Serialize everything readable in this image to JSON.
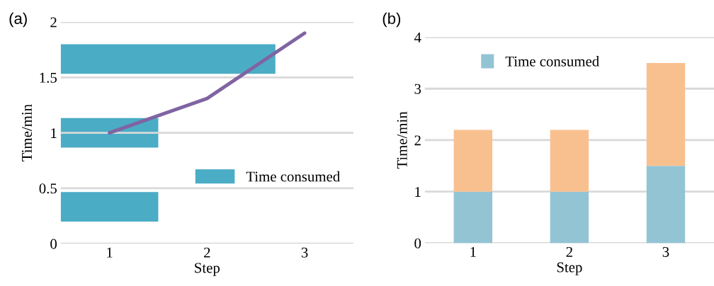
{
  "chart_data": [
    {
      "type": "bar",
      "orientation": "horizontal",
      "tick_labels": "x",
      "xlabel": "Step",
      "annotations": [
        "(a)"
      ],
      "categories": [
        null,
        null,
        null
      ],
      "xlim": [
        0.5,
        3.5
      ],
      "xticks": [
        1,
        2,
        3
      ],
      "legend": "right",
      "series": [
        {
          "name": "Time consumed",
          "color": "#4bacc6",
          "values": [
            2.2,
            1,
            1
          ],
          "base": [
            0.5,
            0.5,
            0.5
          ]
        }
      ]
    },
    {
      "type": "line",
      "tick_labels": "y",
      "ylabel": "Time/min",
      "xlim": [
        0.5,
        3.5
      ],
      "xticks": [
        1,
        2,
        3
      ],
      "ylim": [
        0,
        2
      ],
      "yticks": [
        0,
        0.5,
        1,
        1.5,
        2
      ],
      "grid": "y",
      "series": [
        {
          "color": "#8064a2",
          "x": [
            1,
            2,
            3
          ],
          "values": [
            1,
            1.31,
            1.9
          ]
        }
      ]
    },
    {
      "type": "bar",
      "stacked": true,
      "xlabel": "Step",
      "ylabel": "Time/min",
      "annotations": [
        "(b)"
      ],
      "categories": [
        "1",
        "2",
        "3"
      ],
      "ylim": [
        0,
        4
      ],
      "yticks": [
        0,
        1,
        2,
        3,
        4
      ],
      "grid": "y",
      "legend": "top",
      "series": [
        {
          "name": "Time consumed",
          "color": "#93c4d4",
          "values": [
            1,
            1,
            1.5
          ]
        },
        {
          "color": "#f9c08f",
          "values": [
            1.2,
            1.2,
            2.0
          ]
        }
      ]
    }
  ]
}
